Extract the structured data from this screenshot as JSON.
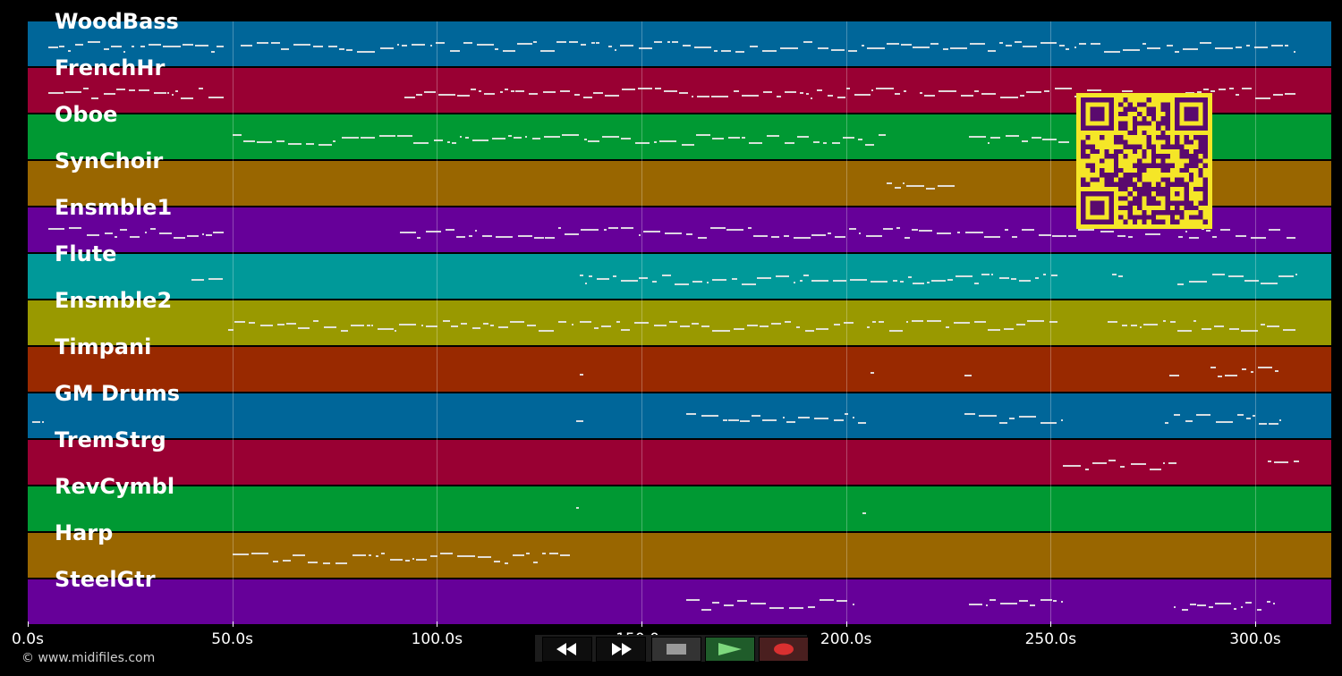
{
  "tracks": [
    {
      "name": "WoodBass",
      "color": "#006699"
    },
    {
      "name": "FrenchHr",
      "color": "#990033"
    },
    {
      "name": "Oboe",
      "color": "#009933"
    },
    {
      "name": "SynChoir",
      "color": "#996600"
    },
    {
      "name": "Ensmble1",
      "color": "#660099"
    },
    {
      "name": "Flute",
      "color": "#009999"
    },
    {
      "name": "Ensmble2",
      "color": "#999900"
    },
    {
      "name": "Timpani",
      "color": "#992900"
    },
    {
      "name": "GM Drums",
      "color": "#006699"
    },
    {
      "name": "TremStrg",
      "color": "#990033"
    },
    {
      "name": "RevCymbl",
      "color": "#009933"
    },
    {
      "name": "Harp",
      "color": "#996600"
    },
    {
      "name": "SteelGtr",
      "color": "#660099"
    }
  ],
  "timeline": {
    "ticks": [
      "0.0s",
      "50.0s",
      "100.0s",
      "150.0s",
      "200.0s",
      "250.0s",
      "300.0s"
    ],
    "tick_seconds": [
      0,
      50,
      100,
      150,
      200,
      250,
      300
    ]
  },
  "copyright": "© www.midifiles.com",
  "transport": {
    "rewind_icon": "rewind-icon",
    "fast_forward_icon": "fast-forward-icon",
    "stop_icon": "stop-icon",
    "play_icon": "play-icon",
    "record_icon": "record-icon"
  },
  "qr_code": {
    "foreground": "#5a0a6e",
    "background": "#f5e627"
  }
}
